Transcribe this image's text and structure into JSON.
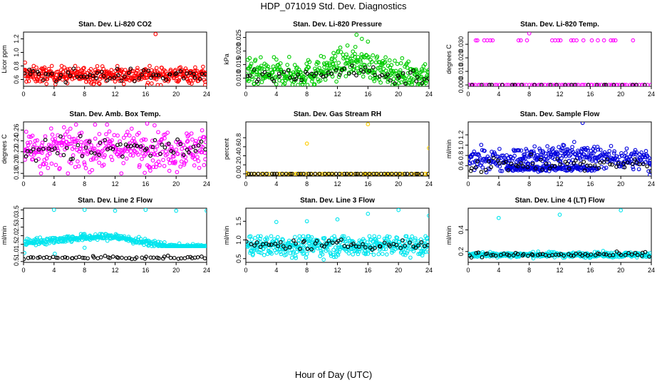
{
  "page": {
    "title": "HDP_071019  Std. Dev. Diagnostics",
    "xlabel": "Hour of Day (UTC)"
  },
  "chart_data": [
    {
      "type": "scatter",
      "title": "Stan. Dev. Li-820 CO2",
      "ylabel": "Licor ppm",
      "xlim": [
        0,
        24
      ],
      "ylim": [
        0.5,
        1.3
      ],
      "xticks": [
        0,
        4,
        8,
        12,
        16,
        20,
        24
      ],
      "xticklabels": [
        "0",
        "4",
        "8",
        "12",
        "16",
        "20",
        "24"
      ],
      "yticks": [
        0.6,
        0.8,
        1.0,
        1.2
      ],
      "yticklabels": [
        "0.6",
        "0.8",
        "1.0",
        "1.2"
      ],
      "series": [
        {
          "name": "line",
          "color": "#ff0000",
          "band": {
            "center": 0.67,
            "spread": 0.06,
            "min": 0.5,
            "max": 0.8,
            "n": 420
          },
          "outliers": [
            [
              0.2,
              0.85
            ],
            [
              17.3,
              1.27
            ],
            [
              16.2,
              0.52
            ],
            [
              23.8,
              0.52
            ]
          ]
        },
        {
          "name": "black",
          "color": "#000000",
          "band": {
            "center": 0.66,
            "spread": 0.05,
            "min": 0.55,
            "max": 0.76,
            "n": 60
          }
        }
      ]
    },
    {
      "type": "scatter",
      "title": "Stan. Dev. Li-820 Pressure",
      "ylabel": "kPa",
      "xlim": [
        0,
        24
      ],
      "ylim": [
        0.007,
        0.027
      ],
      "xticks": [
        0,
        4,
        8,
        12,
        16,
        20,
        24
      ],
      "xticklabels": [
        "0",
        "4",
        "8",
        "12",
        "16",
        "20",
        "24"
      ],
      "yticks": [
        0.01,
        0.015,
        0.02,
        0.025
      ],
      "yticklabels": [
        "0.010",
        "0.015",
        "0.020",
        "0.025"
      ],
      "series": [
        {
          "name": "line",
          "color": "#00cc00",
          "band": {
            "center": 0.0115,
            "spread": 0.0025,
            "min": 0.0075,
            "max": 0.024,
            "n": 420,
            "hump": {
              "x": 14,
              "w": 3.5,
              "amp": 0.0045
            }
          },
          "outliers": [
            [
              14.5,
              0.026
            ],
            [
              15.2,
              0.0245
            ],
            [
              16.0,
              0.0235
            ]
          ]
        },
        {
          "name": "black",
          "color": "#000000",
          "band": {
            "center": 0.0105,
            "spread": 0.0015,
            "min": 0.008,
            "max": 0.016,
            "n": 60,
            "hump": {
              "x": 14,
              "w": 3,
              "amp": 0.003
            }
          }
        }
      ]
    },
    {
      "type": "scatter",
      "title": "Stan. Dev. Li-820 Temp.",
      "ylabel": "degrees C",
      "xlim": [
        0,
        24
      ],
      "ylim": [
        -0.001,
        0.039
      ],
      "xticks": [
        0,
        4,
        8,
        12,
        16,
        20,
        24
      ],
      "xticklabels": [
        "0",
        "4",
        "8",
        "12",
        "16",
        "20",
        "24"
      ],
      "yticks": [
        0,
        0.01,
        0.02,
        0.03
      ],
      "yticklabels": [
        "0.000",
        "0.010",
        "0.020",
        "0.030"
      ],
      "series": [
        {
          "name": "line",
          "color": "#ff00ff",
          "band": {
            "center": 0,
            "spread": 0,
            "min": 0,
            "max": 0,
            "n": 80
          },
          "outliers": [
            [
              0.1,
              0.0
            ],
            [
              0.4,
              0.0
            ],
            [
              1.0,
              0.0329
            ],
            [
              1.2,
              0.0329
            ],
            [
              2.1,
              0.0329
            ],
            [
              2.5,
              0.0329
            ],
            [
              2.9,
              0.0329
            ],
            [
              3.2,
              0.0329
            ],
            [
              6.6,
              0.0329
            ],
            [
              6.9,
              0.0329
            ],
            [
              7.7,
              0.0329
            ],
            [
              8.0,
              0.038
            ],
            [
              11.0,
              0.0329
            ],
            [
              11.4,
              0.0329
            ],
            [
              11.8,
              0.0329
            ],
            [
              12.1,
              0.0329
            ],
            [
              13.5,
              0.0329
            ],
            [
              13.8,
              0.0329
            ],
            [
              14.2,
              0.0329
            ],
            [
              15.1,
              0.0329
            ],
            [
              16.2,
              0.0329
            ],
            [
              17.0,
              0.0329
            ],
            [
              17.8,
              0.0329
            ],
            [
              18.7,
              0.0329
            ],
            [
              19.0,
              0.0329
            ],
            [
              19.3,
              0.0329
            ],
            [
              21.6,
              0.0329
            ]
          ]
        },
        {
          "name": "black",
          "color": "#000000",
          "band": {
            "center": 0,
            "spread": 0,
            "min": 0,
            "max": 0,
            "n": 24
          }
        }
      ]
    },
    {
      "type": "scatter",
      "title": "Stan. Dev. Amb. Box Temp.",
      "ylabel": "degrees C",
      "xlim": [
        0,
        24
      ],
      "ylim": [
        0.175,
        0.275
      ],
      "xticks": [
        0,
        4,
        8,
        12,
        16,
        20,
        24
      ],
      "xticklabels": [
        "0",
        "4",
        "8",
        "12",
        "16",
        "20",
        "24"
      ],
      "yticks": [
        0.18,
        0.2,
        0.22,
        0.24,
        0.26
      ],
      "yticklabels": [
        "0.18",
        "0.20",
        "0.22",
        "0.24",
        "0.26"
      ],
      "series": [
        {
          "name": "line",
          "color": "#ff00ff",
          "band": {
            "center": 0.225,
            "spread": 0.018,
            "min": 0.18,
            "max": 0.27,
            "n": 360
          },
          "outliers": [
            [
              2.3,
              0.18
            ],
            [
              5.3,
              0.265
            ],
            [
              16.2,
              0.272
            ]
          ]
        },
        {
          "name": "black",
          "color": "#000000",
          "band": {
            "center": 0.225,
            "spread": 0.012,
            "min": 0.2,
            "max": 0.26,
            "n": 60
          }
        }
      ]
    },
    {
      "type": "scatter",
      "title": "Stan. Dev. Gas Stream RH",
      "ylabel": "percent",
      "xlim": [
        0,
        24
      ],
      "ylim": [
        -0.05,
        1.15
      ],
      "xticks": [
        0,
        4,
        8,
        12,
        16,
        20,
        24
      ],
      "xticklabels": [
        "0",
        "4",
        "8",
        "12",
        "16",
        "20",
        "24"
      ],
      "yticks": [
        0,
        0.2,
        0.4,
        0.6,
        0.8
      ],
      "yticklabels": [
        "0.0",
        "0.2",
        "0.4",
        "0.6",
        "0.8"
      ],
      "series": [
        {
          "name": "line",
          "color": "#ffcc00",
          "band": {
            "center": 0,
            "spread": 0,
            "min": 0,
            "max": 0,
            "n": 90
          },
          "outliers": [
            [
              0.1,
              0.02
            ],
            [
              8.0,
              0.67
            ],
            [
              16.0,
              1.1
            ],
            [
              24.0,
              0.57
            ]
          ]
        },
        {
          "name": "black",
          "color": "#000000",
          "band": {
            "center": 0,
            "spread": 0,
            "min": 0,
            "max": 0,
            "n": 48
          }
        }
      ]
    },
    {
      "type": "scatter",
      "title": "Stan. Dev. Sample Flow",
      "ylabel": "ml/min",
      "xlim": [
        0,
        24
      ],
      "ylim": [
        0.4,
        1.45
      ],
      "xticks": [
        0,
        4,
        8,
        12,
        16,
        20,
        24
      ],
      "xticklabels": [
        "0",
        "4",
        "8",
        "12",
        "16",
        "20",
        "24"
      ],
      "yticks": [
        0.6,
        0.8,
        1.0,
        1.2
      ],
      "yticklabels": [
        "0.6",
        "0.8",
        "1.0",
        "1.2"
      ],
      "series": [
        {
          "name": "line",
          "color": "#0000dd",
          "band": {
            "center": 0.72,
            "spread": 0.1,
            "min": 0.45,
            "max": 1.15,
            "n": 360,
            "hump": {
              "x": 13,
              "w": 5,
              "amp": 0.12
            }
          },
          "outliers": [
            [
              15.0,
              1.43
            ],
            [
              23.8,
              0.42
            ]
          ]
        },
        {
          "name": "line-lower",
          "color": "#0000dd",
          "band": {
            "center": 0.55,
            "spread": 0.025,
            "min": 0.48,
            "max": 0.62,
            "n": 150,
            "xrange": [
              5,
              17
            ]
          }
        },
        {
          "name": "black",
          "color": "#000000",
          "band": {
            "center": 0.62,
            "spread": 0.07,
            "min": 0.48,
            "max": 0.9,
            "n": 60
          }
        }
      ]
    },
    {
      "type": "scatter",
      "title": "Stan. Dev. Line 2 Flow",
      "ylabel": "ml/min",
      "xlim": [
        0,
        24
      ],
      "ylim": [
        0.45,
        3.6
      ],
      "xticks": [
        0,
        4,
        8,
        12,
        16,
        20,
        24
      ],
      "xticklabels": [
        "0",
        "4",
        "8",
        "12",
        "16",
        "20",
        "24"
      ],
      "yticks": [
        0.5,
        1.0,
        1.5,
        2.0,
        2.5,
        3.0,
        3.5
      ],
      "yticklabels": [
        "0.5",
        "1.0",
        "1.5",
        "2.0",
        "2.5",
        "3.0",
        "3.5"
      ],
      "series": [
        {
          "name": "line",
          "color": "#00e5ee",
          "band": {
            "center": 1.7,
            "spread": 0.1,
            "min": 1.4,
            "max": 2.1,
            "n": 380,
            "trend": [
              [
                0,
                1.6
              ],
              [
                8,
                1.9
              ],
              [
                12,
                1.95
              ],
              [
                16,
                1.6
              ],
              [
                20,
                1.3
              ],
              [
                24,
                1.3
              ]
            ]
          },
          "outliers": [
            [
              4.0,
              3.5
            ],
            [
              8.0,
              3.5
            ],
            [
              12.0,
              3.45
            ],
            [
              16.0,
              3.5
            ],
            [
              20.0,
              3.45
            ],
            [
              24.0,
              3.45
            ],
            [
              0.1,
              1.0
            ],
            [
              4.1,
              0.95
            ],
            [
              8.0,
              1.3
            ]
          ]
        },
        {
          "name": "black",
          "color": "#000000",
          "band": {
            "center": 0.72,
            "spread": 0.04,
            "min": 0.62,
            "max": 0.85,
            "n": 60
          }
        }
      ]
    },
    {
      "type": "scatter",
      "title": "Stan. Dev. Line 3 Flow",
      "ylabel": "ml/min",
      "xlim": [
        0,
        24
      ],
      "ylim": [
        0.4,
        1.85
      ],
      "xticks": [
        0,
        4,
        8,
        12,
        16,
        20,
        24
      ],
      "xticklabels": [
        "0",
        "4",
        "8",
        "12",
        "16",
        "20",
        "24"
      ],
      "yticks": [
        0.5,
        1.0,
        1.5
      ],
      "yticklabels": [
        "0.5",
        "1.0",
        "1.5"
      ],
      "series": [
        {
          "name": "line",
          "color": "#00e5ee",
          "band": {
            "center": 0.85,
            "spread": 0.14,
            "min": 0.45,
            "max": 1.1,
            "n": 460
          },
          "outliers": [
            [
              4.0,
              1.48
            ],
            [
              8.0,
              1.5
            ],
            [
              12.0,
              1.55
            ],
            [
              16.0,
              1.7
            ],
            [
              20.0,
              1.8
            ],
            [
              24.0,
              1.65
            ]
          ]
        },
        {
          "name": "black",
          "color": "#000000",
          "band": {
            "center": 0.87,
            "spread": 0.06,
            "min": 0.7,
            "max": 1.02,
            "n": 60
          }
        }
      ]
    },
    {
      "type": "scatter",
      "title": "Stan. Dev. Line 4 (LT) Flow",
      "ylabel": "ml/min",
      "xlim": [
        0,
        24
      ],
      "ylim": [
        0.1,
        0.6
      ],
      "xticks": [
        0,
        4,
        8,
        12,
        16,
        20,
        24
      ],
      "xticklabels": [
        "0",
        "4",
        "8",
        "12",
        "16",
        "20",
        "24"
      ],
      "yticks": [
        0.2,
        0.4
      ],
      "yticklabels": [
        "0.2",
        "0.4"
      ],
      "series": [
        {
          "name": "line",
          "color": "#00e5ee",
          "band": {
            "center": 0.17,
            "spread": 0.012,
            "min": 0.13,
            "max": 0.21,
            "n": 380
          },
          "outliers": [
            [
              4.0,
              0.51
            ],
            [
              12.0,
              0.54
            ],
            [
              20.0,
              0.58
            ]
          ]
        },
        {
          "name": "black",
          "color": "#000000",
          "band": {
            "center": 0.17,
            "spread": 0.01,
            "min": 0.14,
            "max": 0.2,
            "n": 60
          }
        }
      ]
    }
  ]
}
